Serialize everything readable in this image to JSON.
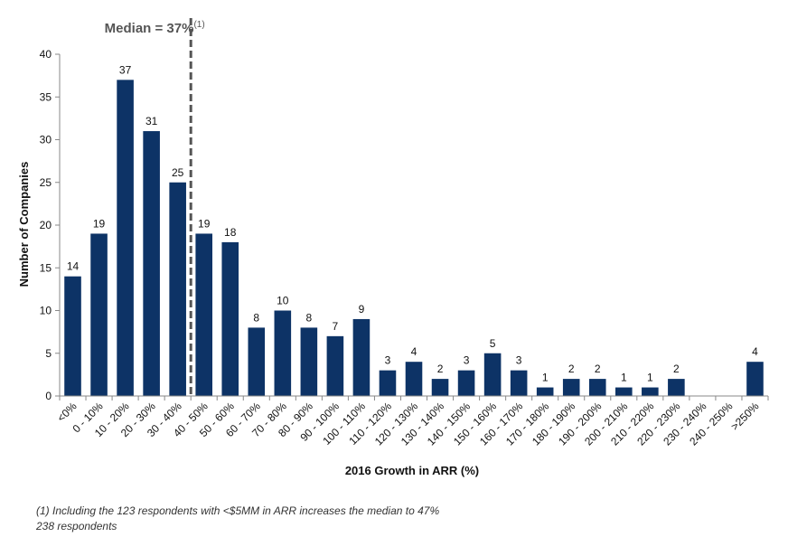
{
  "chart_data": {
    "type": "bar",
    "title": "",
    "annotation": {
      "label": "Median = 37%",
      "superscript": "(1)",
      "x_category_boundary": "30 - 40%"
    },
    "xlabel": "2016 Growth in ARR (%)",
    "ylabel": "Number of Companies",
    "ylim": [
      0,
      40
    ],
    "yticks": [
      0,
      5,
      10,
      15,
      20,
      25,
      30,
      35,
      40
    ],
    "grid": false,
    "categories": [
      "<0%",
      "0 - 10%",
      "10 - 20%",
      "20 - 30%",
      "30 - 40%",
      "40 - 50%",
      "50 - 60%",
      "60 - 70%",
      "70 - 80%",
      "80 - 90%",
      "90 - 100%",
      "100 - 110%",
      "110 - 120%",
      "120 - 130%",
      "130 - 140%",
      "140 - 150%",
      "150 - 160%",
      "160 - 170%",
      "170 - 180%",
      "180 - 190%",
      "190 - 200%",
      "200 - 210%",
      "210 - 220%",
      "220 - 230%",
      "230 - 240%",
      "240 - 250%",
      ">250%"
    ],
    "values": [
      14,
      19,
      37,
      31,
      25,
      19,
      18,
      8,
      10,
      8,
      7,
      9,
      3,
      4,
      2,
      3,
      5,
      3,
      1,
      2,
      2,
      1,
      1,
      2,
      0,
      0,
      4
    ],
    "colors": {
      "bar": "#0d3366",
      "median_line": "#555555",
      "axis": "#888888",
      "text": "#111111",
      "median_text": "#555555"
    }
  },
  "footnotes": {
    "note1": "(1)    Including the 123 respondents with <$5MM in ARR increases the median to 47%",
    "note2": "238 respondents"
  }
}
